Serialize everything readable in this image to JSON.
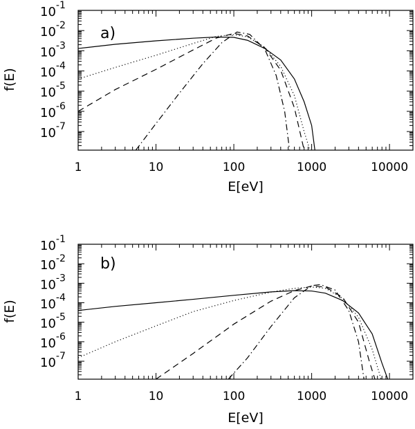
{
  "chart_data": [
    {
      "type": "line",
      "panel_label": "a)",
      "xlabel": "E[eV]",
      "ylabel": "f(E)",
      "xscale": "log",
      "yscale": "log",
      "xlim": [
        1,
        20000
      ],
      "ylim": [
        1.2e-08,
        0.1
      ],
      "x_tick_labels": [
        "1",
        "10",
        "100",
        "1000",
        "10000"
      ],
      "x_tick_values": [
        1,
        10,
        100,
        1000,
        10000
      ],
      "y_tick_labels": [
        {
          "base": "10",
          "exp": "-1",
          "value": 0.1
        },
        {
          "base": "10",
          "exp": "-2",
          "value": 0.01
        },
        {
          "base": "10",
          "exp": "-3",
          "value": 0.001
        },
        {
          "base": "10",
          "exp": "-4",
          "value": 0.0001
        },
        {
          "base": "10",
          "exp": "-5",
          "value": 1e-05
        },
        {
          "base": "10",
          "exp": "-6",
          "value": 1e-06
        },
        {
          "base": "10",
          "exp": "-7",
          "value": 1e-07
        }
      ],
      "grid": false,
      "series": [
        {
          "style": "solid",
          "x": [
            1,
            3,
            10,
            30,
            60,
            100,
            150,
            250,
            400,
            600,
            800,
            1000,
            1100
          ],
          "y": [
            0.0013,
            0.0021,
            0.0031,
            0.0042,
            0.0048,
            0.0046,
            0.0033,
            0.0013,
            0.00035,
            4e-05,
            3e-06,
            2e-07,
            1.2e-08
          ]
        },
        {
          "style": "dotted",
          "x": [
            1,
            3,
            10,
            30,
            60,
            100,
            150,
            250,
            400,
            600,
            800,
            950
          ],
          "y": [
            4e-05,
            0.00015,
            0.0006,
            0.0023,
            0.0052,
            0.0063,
            0.0049,
            0.0015,
            0.00017,
            6e-06,
            1e-07,
            1.2e-08
          ]
        },
        {
          "style": "dashed",
          "x": [
            1,
            3,
            10,
            30,
            60,
            100,
            150,
            250,
            400,
            600,
            800
          ],
          "y": [
            1e-06,
            1.2e-05,
            0.00012,
            0.0011,
            0.0043,
            0.0072,
            0.0054,
            0.0014,
            0.00011,
            1.5e-06,
            1.2e-08
          ]
        },
        {
          "style": "dash-dot",
          "x": [
            5.5,
            10,
            20,
            40,
            70,
            110,
            160,
            250,
            350,
            450,
            520
          ],
          "y": [
            1.2e-08,
            2.5e-07,
            8e-06,
            0.00023,
            0.0025,
            0.0085,
            0.0065,
            0.0012,
            6e-05,
            1e-06,
            1.2e-08
          ]
        }
      ]
    },
    {
      "type": "line",
      "panel_label": "b)",
      "xlabel": "E[eV]",
      "ylabel": "f(E)",
      "xscale": "log",
      "yscale": "log",
      "xlim": [
        1,
        20000
      ],
      "ylim": [
        1.2e-08,
        0.1
      ],
      "x_tick_labels": [
        "1",
        "10",
        "100",
        "1000",
        "10000"
      ],
      "x_tick_values": [
        1,
        10,
        100,
        1000,
        10000
      ],
      "y_tick_labels": [
        {
          "base": "10",
          "exp": "-1",
          "value": 0.1
        },
        {
          "base": "10",
          "exp": "-2",
          "value": 0.01
        },
        {
          "base": "10",
          "exp": "-3",
          "value": 0.001
        },
        {
          "base": "10",
          "exp": "-4",
          "value": 0.0001
        },
        {
          "base": "10",
          "exp": "-5",
          "value": 1e-05
        },
        {
          "base": "10",
          "exp": "-6",
          "value": 1e-06
        },
        {
          "base": "10",
          "exp": "-7",
          "value": 1e-07
        }
      ],
      "grid": false,
      "series": [
        {
          "style": "solid",
          "x": [
            1,
            3,
            10,
            30,
            100,
            300,
            600,
            1000,
            1500,
            2500,
            4000,
            6000,
            8000,
            9500
          ],
          "y": [
            4e-05,
            6.5e-05,
            0.0001,
            0.00015,
            0.00024,
            0.00036,
            0.00042,
            0.0004,
            0.00031,
            0.00013,
            3e-05,
            2.5e-06,
            8e-08,
            1.2e-08
          ]
        },
        {
          "style": "dotted",
          "x": [
            1,
            3,
            10,
            30,
            100,
            300,
            600,
            1000,
            1500,
            2500,
            4000,
            6000,
            7800
          ],
          "y": [
            1.5e-07,
            1e-06,
            6.5e-06,
            3.5e-05,
            0.00013,
            0.00035,
            0.00055,
            0.00064,
            0.00055,
            0.00017,
            1.8e-05,
            4e-07,
            1.2e-08
          ]
        },
        {
          "style": "dashed",
          "x": [
            10,
            30,
            100,
            300,
            600,
            1000,
            1500,
            2500,
            4000,
            5500,
            6500
          ],
          "y": [
            1.2e-08,
            2.5e-07,
            8e-06,
            0.00012,
            0.00042,
            0.00072,
            0.00064,
            0.00019,
            1e-05,
            1e-07,
            1.2e-08
          ]
        },
        {
          "style": "dash-dot",
          "x": [
            85,
            150,
            300,
            600,
            1000,
            1300,
            2000,
            3000,
            4000,
            4700
          ],
          "y": [
            1.2e-08,
            1.5e-07,
            6e-06,
            0.00018,
            0.00075,
            0.00085,
            0.00045,
            4e-05,
            1e-06,
            1.2e-08
          ]
        }
      ]
    }
  ]
}
